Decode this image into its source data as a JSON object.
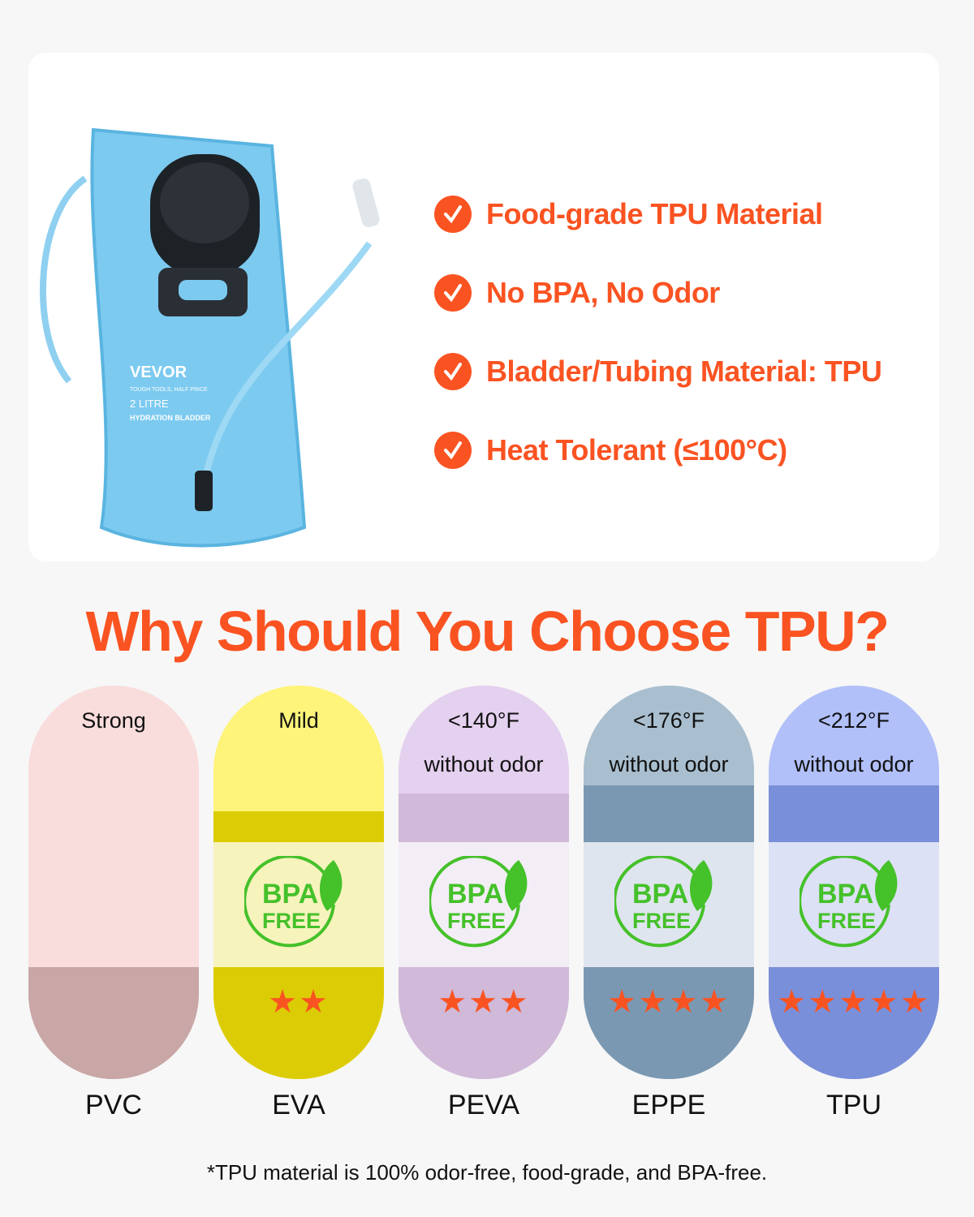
{
  "product": {
    "brand": "VEVOR",
    "tagline": "TOUGH TOOLS, HALF PRICE",
    "capacity": "2 LITRE",
    "type": "HYDRATION BLADDER"
  },
  "features": [
    "Food-grade TPU Material",
    "No BPA, No Odor",
    "Bladder/Tubing Material: TPU",
    "Heat Tolerant (≤100°C)"
  ],
  "title": "Why Should You Choose TPU?",
  "materials": [
    {
      "name": "PVC",
      "odor": "Strong",
      "temp": "",
      "bpa_free": false,
      "stars": 0,
      "colors": {
        "top": "#f9dcdc",
        "mid": "#f9dcdc",
        "light": "#f9dcdc",
        "dark": "#c9a7a7"
      }
    },
    {
      "name": "EVA",
      "odor": "Mild",
      "temp": "",
      "bpa_free": true,
      "stars": 2,
      "colors": {
        "top": "#fff47a",
        "mid": "#dccc05",
        "light": "#f7f3bd",
        "dark": "#dccc05"
      }
    },
    {
      "name": "PEVA",
      "odor": "without odor",
      "temp": "<140°F",
      "bpa_free": true,
      "stars": 3,
      "colors": {
        "top": "#e4d0ef",
        "mid": "#d0b9d9",
        "light": "#f3eef6",
        "dark": "#d0b9d9"
      }
    },
    {
      "name": "EPPE",
      "odor": "without odor",
      "temp": "<176°F",
      "bpa_free": true,
      "stars": 4,
      "colors": {
        "top": "#a9bfcf",
        "mid": "#7b98b2",
        "light": "#dfe5ee",
        "dark": "#7b98b2"
      }
    },
    {
      "name": "TPU",
      "odor": "without odor",
      "temp": "<212°F",
      "bpa_free": true,
      "stars": 5,
      "colors": {
        "top": "#b1c0f9",
        "mid": "#7a8fd9",
        "light": "#dde1f5",
        "dark": "#7a8fd9"
      }
    }
  ],
  "bpa_badge": {
    "line1": "BPA",
    "line2": "FREE"
  },
  "footnote": "*TPU material is 100% odor-free, food-grade, and BPA-free.",
  "accent": "#fa5322"
}
